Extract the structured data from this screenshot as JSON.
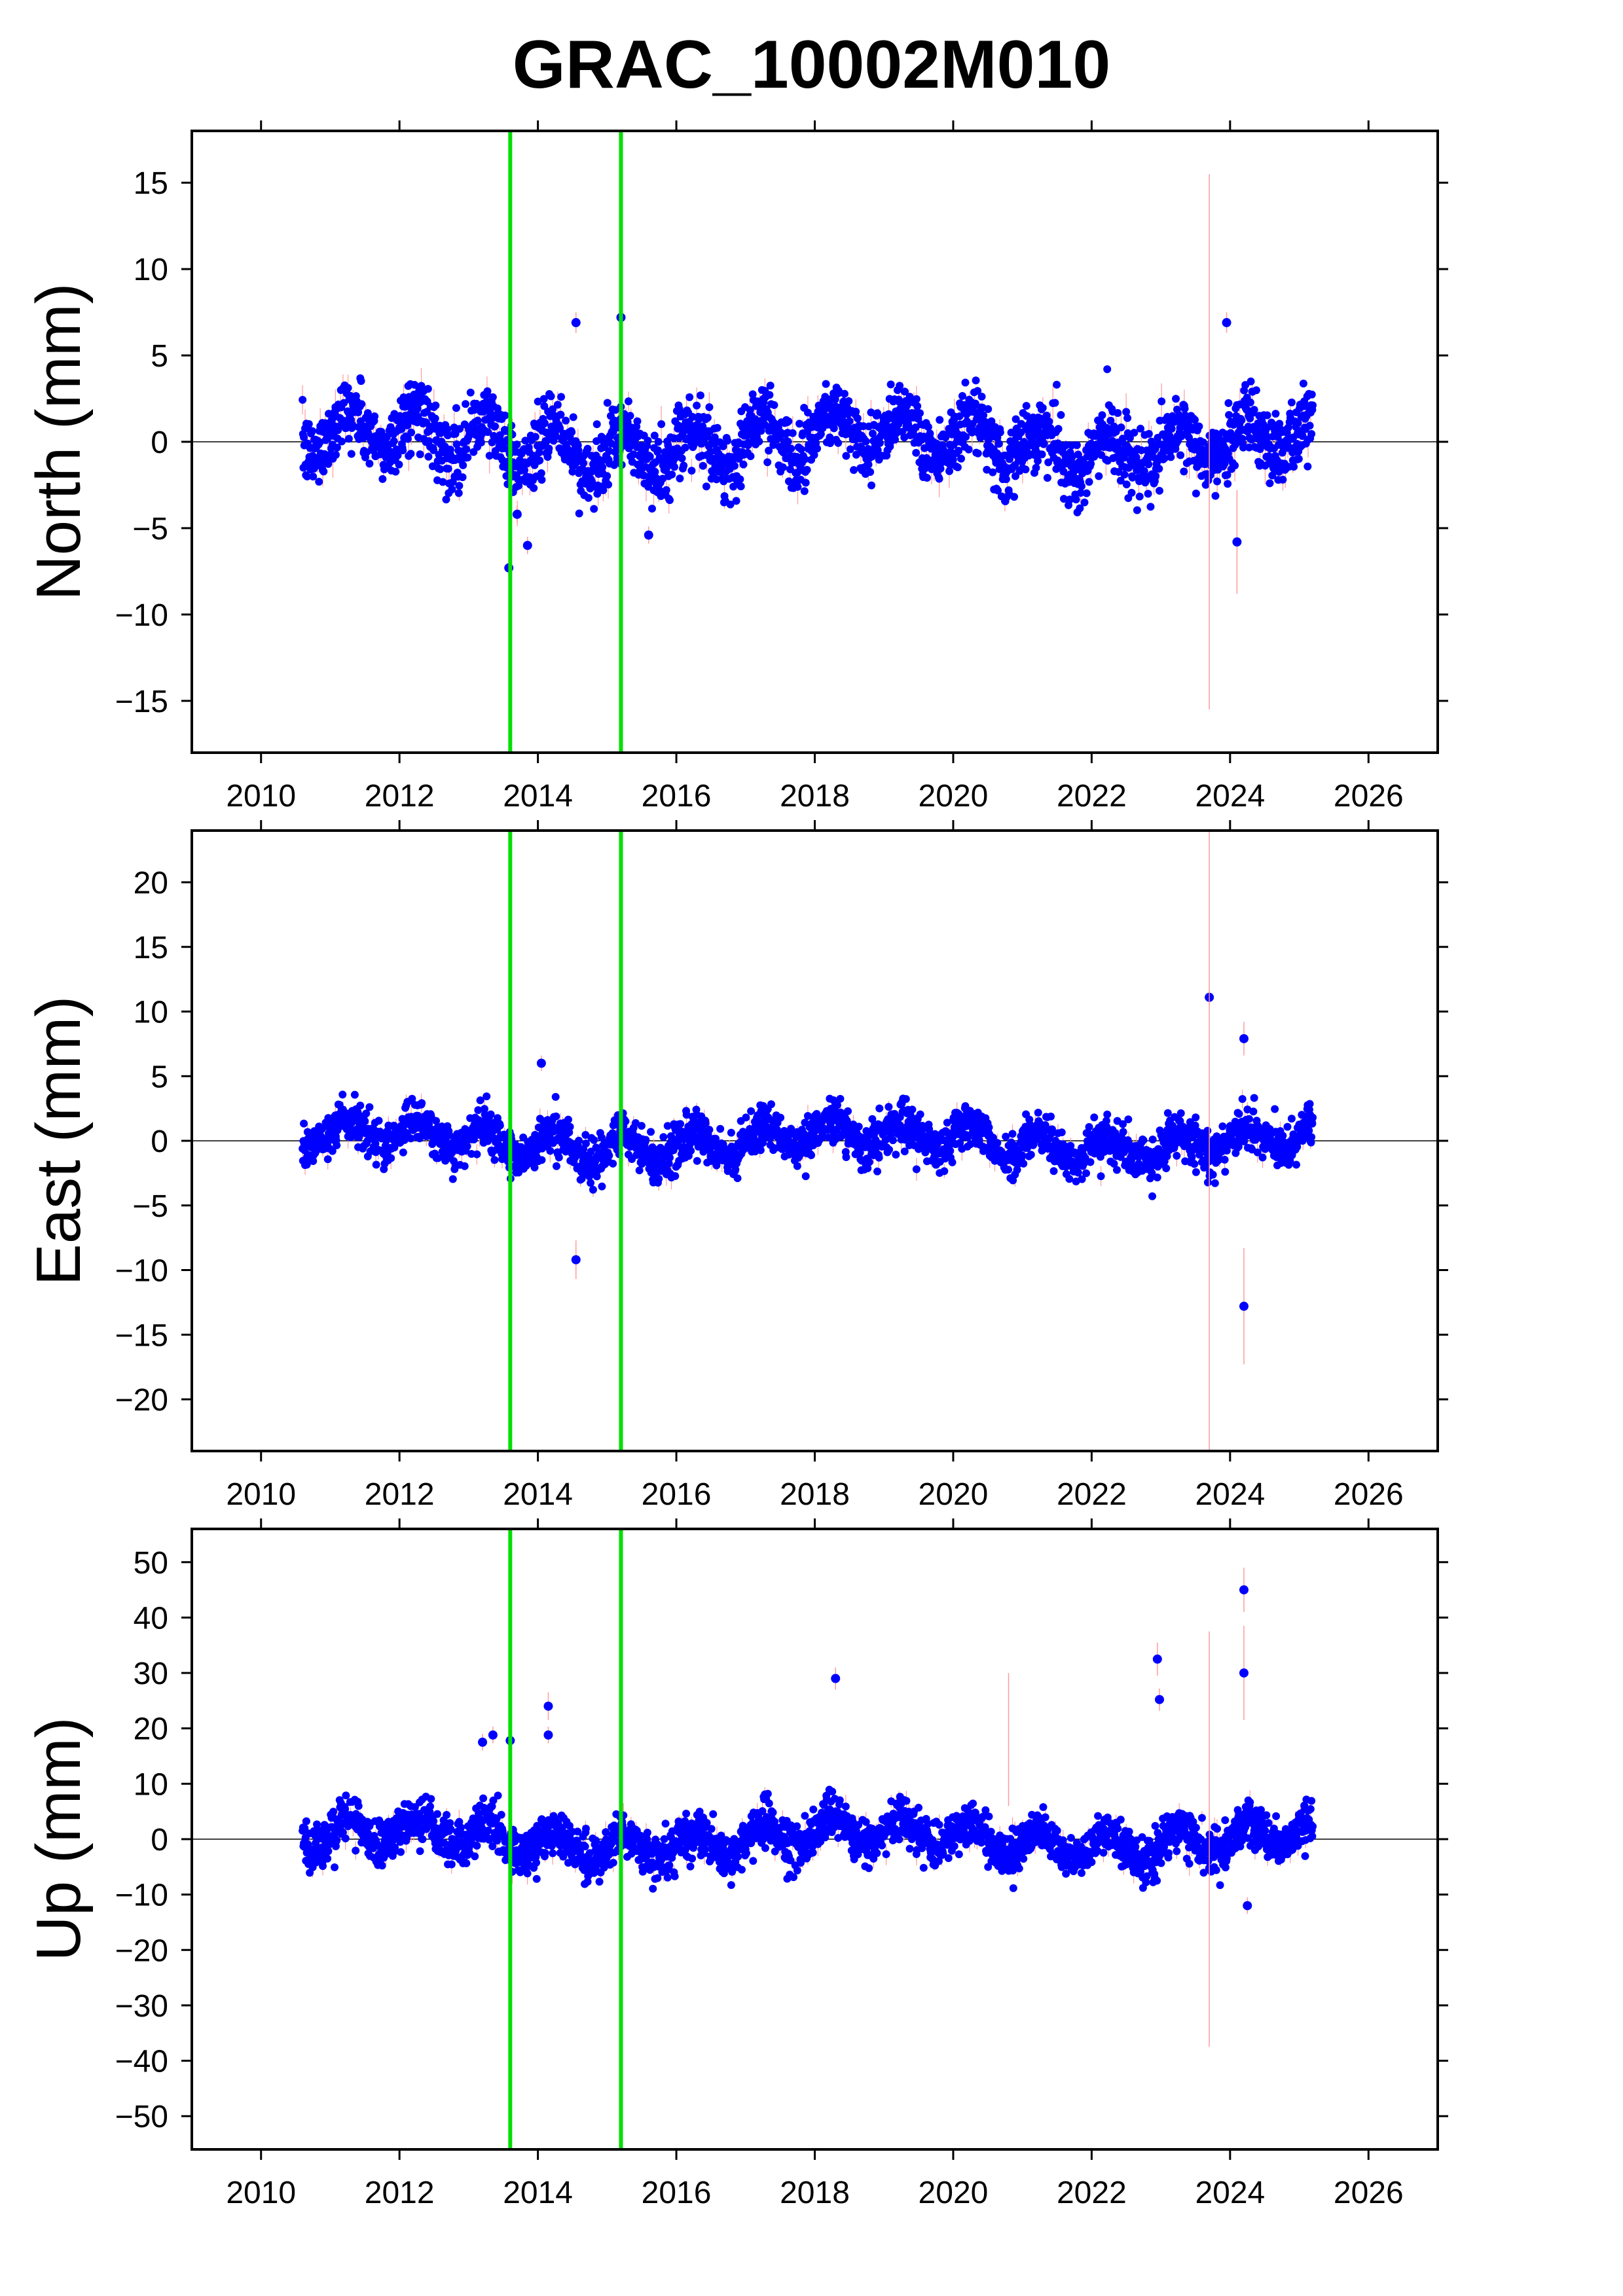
{
  "title": "GRAC_10002M010",
  "chart_data": [
    {
      "type": "scatter",
      "name": "north-panel",
      "ylabel": "North (mm)",
      "xlim": [
        2009,
        2027
      ],
      "ylim": [
        -18,
        18
      ],
      "xticks": [
        2010,
        2012,
        2014,
        2016,
        2018,
        2020,
        2022,
        2024,
        2026
      ],
      "yticks": [
        -15,
        -10,
        -5,
        0,
        5,
        10,
        15
      ],
      "zero_line": true,
      "event_lines": [
        2013.6,
        2015.2
      ],
      "data_range": [
        2010.6,
        2025.2
      ],
      "typical_spread": 2.2,
      "outliers": [
        {
          "x": 2013.58,
          "y": -7.3,
          "err": 0.5
        },
        {
          "x": 2013.7,
          "y": -4.2,
          "err": 0.5
        },
        {
          "x": 2013.85,
          "y": -6.0,
          "err": 0.5
        },
        {
          "x": 2014.55,
          "y": 6.9,
          "err": 0.6
        },
        {
          "x": 2015.2,
          "y": 7.2,
          "err": 0.5
        },
        {
          "x": 2015.6,
          "y": -5.4,
          "err": 0.5
        },
        {
          "x": 2023.7,
          "y": 0.0,
          "err": 15.5
        },
        {
          "x": 2023.95,
          "y": 6.9,
          "err": 0.6
        },
        {
          "x": 2024.1,
          "y": -5.8,
          "err": 3.0
        }
      ],
      "point_color": "#0000ff",
      "error_color": "#ff9a9a",
      "event_color": "#00e000"
    },
    {
      "type": "scatter",
      "name": "east-panel",
      "ylabel": "East (mm)",
      "xlim": [
        2009,
        2027
      ],
      "ylim": [
        -24,
        24
      ],
      "xticks": [
        2010,
        2012,
        2014,
        2016,
        2018,
        2020,
        2022,
        2024,
        2026
      ],
      "yticks": [
        -20,
        -15,
        -10,
        -5,
        0,
        5,
        10,
        15,
        20
      ],
      "zero_line": true,
      "event_lines": [
        2013.6,
        2015.2
      ],
      "data_range": [
        2010.6,
        2025.2
      ],
      "typical_spread": 1.9,
      "outliers": [
        {
          "x": 2014.05,
          "y": 6.0,
          "err": 0.6
        },
        {
          "x": 2014.55,
          "y": -9.2,
          "err": 1.5
        },
        {
          "x": 2023.7,
          "y": 11.1,
          "err": 0.6
        },
        {
          "x": 2023.7,
          "y": 0.0,
          "err": 24.0
        },
        {
          "x": 2024.2,
          "y": 7.9,
          "err": 1.3
        },
        {
          "x": 2024.2,
          "y": -12.8,
          "err": 4.5
        }
      ],
      "point_color": "#0000ff",
      "error_color": "#ff9a9a",
      "event_color": "#00e000"
    },
    {
      "type": "scatter",
      "name": "up-panel",
      "ylabel": "Up (mm)",
      "xlim": [
        2009,
        2027
      ],
      "ylim": [
        -56,
        56
      ],
      "xticks": [
        2010,
        2012,
        2014,
        2016,
        2018,
        2020,
        2022,
        2024,
        2026
      ],
      "yticks": [
        -50,
        -40,
        -30,
        -20,
        -10,
        0,
        10,
        20,
        30,
        40,
        50
      ],
      "zero_line": true,
      "event_lines": [
        2013.6,
        2015.2
      ],
      "data_range": [
        2010.6,
        2025.2
      ],
      "typical_spread": 4.5,
      "outliers": [
        {
          "x": 2013.2,
          "y": 17.5,
          "err": 1.5
        },
        {
          "x": 2013.35,
          "y": 18.8,
          "err": 1.5
        },
        {
          "x": 2013.6,
          "y": 17.8,
          "err": 1.5
        },
        {
          "x": 2014.15,
          "y": 24.0,
          "err": 2.5
        },
        {
          "x": 2014.15,
          "y": 18.8,
          "err": 1.5
        },
        {
          "x": 2018.3,
          "y": 29.0,
          "err": 2.0
        },
        {
          "x": 2020.8,
          "y": 18.0,
          "err": 12.0
        },
        {
          "x": 2022.95,
          "y": 32.5,
          "err": 3.0
        },
        {
          "x": 2022.98,
          "y": 25.2,
          "err": 2.0
        },
        {
          "x": 2023.7,
          "y": 0.0,
          "err": 37.5
        },
        {
          "x": 2024.2,
          "y": 45.0,
          "err": 4.0
        },
        {
          "x": 2024.2,
          "y": 30.0,
          "err": 8.5
        },
        {
          "x": 2024.25,
          "y": -12.0,
          "err": 1.5
        }
      ],
      "point_color": "#0000ff",
      "error_color": "#ff9a9a",
      "event_color": "#00e000"
    }
  ]
}
